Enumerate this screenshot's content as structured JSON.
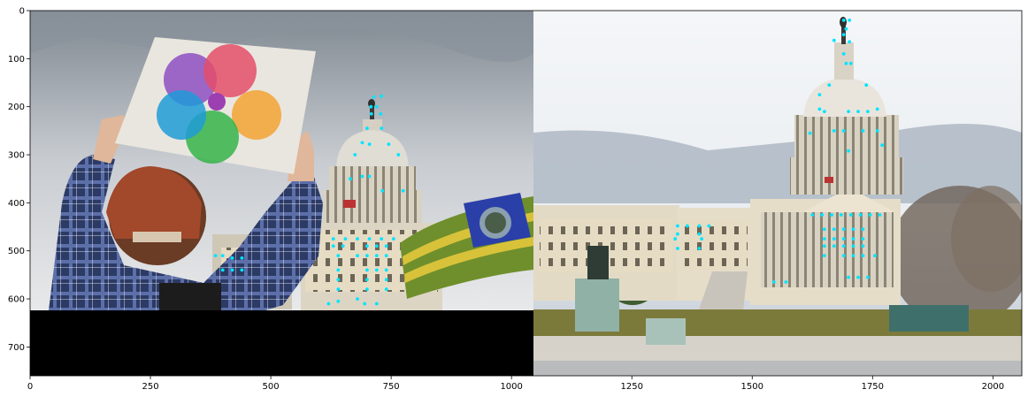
{
  "chart_data": {
    "type": "scatter",
    "title": "",
    "xlabel": "",
    "ylabel": "",
    "xlim": [
      0,
      2060
    ],
    "ylim": [
      760,
      0
    ],
    "x_ticks": [
      0,
      250,
      500,
      750,
      1000,
      1250,
      1500,
      1750,
      2000
    ],
    "y_ticks": [
      0,
      100,
      200,
      300,
      400,
      500,
      600,
      700
    ],
    "grid": false,
    "panels": [
      {
        "name": "",
        "x_range": [
          0,
          1045
        ],
        "y_range": [
          0,
          760
        ],
        "content": "protest photo with sign and flag in front of the US Capitol; black padding below y=625"
      },
      {
        "name": "",
        "x_range": [
          1045,
          2060
        ],
        "y_range": [
          0,
          760
        ],
        "content": "US Capitol building photo"
      }
    ],
    "series": [
      {
        "name": "",
        "color": "#00e5ff",
        "points": [
          [
            714,
            180
          ],
          [
            730,
            178
          ],
          [
            708,
            200
          ],
          [
            720,
            200
          ],
          [
            709,
            215
          ],
          [
            728,
            215
          ],
          [
            700,
            245
          ],
          [
            730,
            245
          ],
          [
            690,
            275
          ],
          [
            705,
            278
          ],
          [
            745,
            278
          ],
          [
            675,
            300
          ],
          [
            765,
            300
          ],
          [
            690,
            345
          ],
          [
            705,
            345
          ],
          [
            665,
            350
          ],
          [
            732,
            375
          ],
          [
            775,
            375
          ],
          [
            630,
            475
          ],
          [
            655,
            475
          ],
          [
            680,
            475
          ],
          [
            705,
            475
          ],
          [
            730,
            475
          ],
          [
            755,
            475
          ],
          [
            630,
            490
          ],
          [
            650,
            490
          ],
          [
            700,
            490
          ],
          [
            720,
            490
          ],
          [
            740,
            490
          ],
          [
            640,
            510
          ],
          [
            680,
            510
          ],
          [
            700,
            510
          ],
          [
            720,
            510
          ],
          [
            740,
            510
          ],
          [
            640,
            540
          ],
          [
            700,
            540
          ],
          [
            720,
            540
          ],
          [
            740,
            540
          ],
          [
            640,
            560
          ],
          [
            700,
            560
          ],
          [
            740,
            560
          ],
          [
            640,
            580
          ],
          [
            700,
            580
          ],
          [
            740,
            580
          ],
          [
            385,
            510
          ],
          [
            400,
            510
          ],
          [
            420,
            515
          ],
          [
            440,
            515
          ],
          [
            400,
            540
          ],
          [
            420,
            540
          ],
          [
            440,
            540
          ],
          [
            620,
            610
          ],
          [
            640,
            605
          ],
          [
            680,
            600
          ],
          [
            695,
            610
          ],
          [
            720,
            610
          ],
          [
            1690,
            20
          ],
          [
            1702,
            20
          ],
          [
            1695,
            38
          ],
          [
            1690,
            50
          ],
          [
            1670,
            62
          ],
          [
            1702,
            65
          ],
          [
            1690,
            90
          ],
          [
            1695,
            110
          ],
          [
            1705,
            110
          ],
          [
            1660,
            155
          ],
          [
            1737,
            155
          ],
          [
            1640,
            175
          ],
          [
            1640,
            205
          ],
          [
            1760,
            205
          ],
          [
            1650,
            210
          ],
          [
            1700,
            210
          ],
          [
            1720,
            210
          ],
          [
            1740,
            210
          ],
          [
            1670,
            250
          ],
          [
            1690,
            250
          ],
          [
            1730,
            250
          ],
          [
            1760,
            250
          ],
          [
            1620,
            255
          ],
          [
            1770,
            280
          ],
          [
            1700,
            292
          ],
          [
            1625,
            425
          ],
          [
            1645,
            425
          ],
          [
            1665,
            425
          ],
          [
            1685,
            425
          ],
          [
            1705,
            425
          ],
          [
            1725,
            425
          ],
          [
            1745,
            425
          ],
          [
            1765,
            425
          ],
          [
            1650,
            455
          ],
          [
            1670,
            455
          ],
          [
            1690,
            455
          ],
          [
            1710,
            455
          ],
          [
            1730,
            455
          ],
          [
            1650,
            475
          ],
          [
            1670,
            475
          ],
          [
            1690,
            475
          ],
          [
            1710,
            475
          ],
          [
            1730,
            475
          ],
          [
            1650,
            490
          ],
          [
            1670,
            490
          ],
          [
            1690,
            490
          ],
          [
            1710,
            490
          ],
          [
            1730,
            490
          ],
          [
            1650,
            510
          ],
          [
            1690,
            510
          ],
          [
            1710,
            510
          ],
          [
            1730,
            510
          ],
          [
            1755,
            510
          ],
          [
            1700,
            555
          ],
          [
            1720,
            555
          ],
          [
            1740,
            555
          ],
          [
            1545,
            565
          ],
          [
            1570,
            565
          ],
          [
            1345,
            448
          ],
          [
            1365,
            448
          ],
          [
            1390,
            448
          ],
          [
            1410,
            448
          ],
          [
            1345,
            465
          ],
          [
            1390,
            465
          ],
          [
            1340,
            475
          ],
          [
            1395,
            475
          ],
          [
            1345,
            495
          ],
          [
            1390,
            495
          ]
        ]
      }
    ]
  }
}
